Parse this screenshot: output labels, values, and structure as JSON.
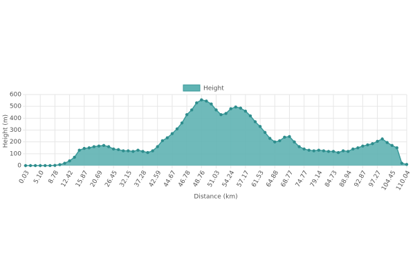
{
  "chart_data": {
    "type": "area",
    "x_label": "Distance (km)",
    "y_label": "Height (m)",
    "categories": [
      "0.03",
      null,
      null,
      "5.10",
      null,
      null,
      "8.78",
      null,
      null,
      "12.42",
      null,
      null,
      "15.87",
      null,
      null,
      "20.69",
      null,
      null,
      "26.45",
      null,
      null,
      "32.15",
      null,
      null,
      "37.28",
      null,
      null,
      "42.59",
      null,
      null,
      "44.67",
      null,
      null,
      "46.78",
      null,
      null,
      "48.76",
      null,
      null,
      "51.03",
      null,
      null,
      "54.24",
      null,
      null,
      "57.17",
      null,
      null,
      "61.53",
      null,
      null,
      "64.88",
      null,
      null,
      "68.77",
      null,
      null,
      "74.77",
      null,
      null,
      "79.14",
      null,
      null,
      "84.73",
      null,
      null,
      "88.94",
      null,
      null,
      "92.87",
      null,
      null,
      "97.27",
      null,
      null,
      "104.45",
      null,
      null,
      "110.04"
    ],
    "series": [
      {
        "name": "Height",
        "color": "#5fb3b3",
        "values": [
          0,
          0,
          0,
          0,
          0,
          0,
          2,
          8,
          20,
          40,
          70,
          130,
          145,
          150,
          160,
          165,
          170,
          160,
          140,
          135,
          125,
          125,
          120,
          130,
          120,
          110,
          125,
          160,
          210,
          235,
          270,
          310,
          360,
          430,
          470,
          530,
          555,
          545,
          520,
          470,
          430,
          440,
          480,
          495,
          485,
          460,
          420,
          370,
          330,
          280,
          230,
          200,
          210,
          240,
          245,
          200,
          160,
          140,
          130,
          125,
          130,
          125,
          120,
          120,
          110,
          125,
          120,
          140,
          150,
          165,
          175,
          185,
          205,
          225,
          195,
          170,
          150,
          20,
          10
        ]
      }
    ],
    "ylim": [
      0,
      600
    ],
    "yticks": [
      0,
      100,
      200,
      300,
      400,
      500,
      600
    ],
    "grid": true,
    "legend": "top"
  }
}
